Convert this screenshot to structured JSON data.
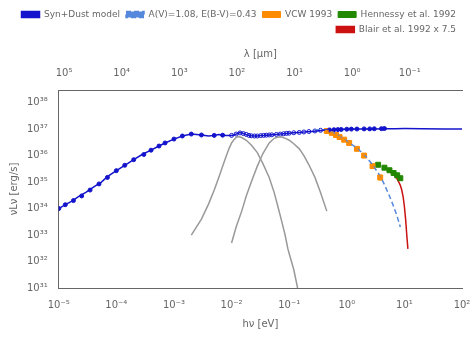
{
  "chart_data": {
    "type": "line",
    "xlabel": "hν [eV]",
    "ylabel": "νLν [erg/s]",
    "x2label": "λ [μm]",
    "log": true,
    "grid": false,
    "legend": "upper right",
    "xlim": [
      1e-05,
      100.0
    ],
    "xticks": [
      {
        "value": 1e-05,
        "label": "10⁻⁵"
      },
      {
        "value": 0.0001,
        "label": "10⁻⁴"
      },
      {
        "value": 0.001,
        "label": "10⁻³"
      },
      {
        "value": 0.01,
        "label": "10⁻²"
      },
      {
        "value": 0.1,
        "label": "10⁻¹"
      },
      {
        "value": 1,
        "label": "10⁰"
      },
      {
        "value": 10,
        "label": "10¹"
      },
      {
        "value": 100,
        "label": "10²"
      }
    ],
    "x2lim": [
      123980,
      0.012398
    ],
    "x2ticks": [
      {
        "value": 100000.0,
        "label": "10⁵"
      },
      {
        "value": 10000.0,
        "label": "10⁴"
      },
      {
        "value": 1000.0,
        "label": "10³"
      },
      {
        "value": 100,
        "label": "10²"
      },
      {
        "value": 10,
        "label": "10¹"
      },
      {
        "value": 1,
        "label": "10⁰"
      },
      {
        "value": 0.1,
        "label": "10⁻¹"
      }
    ],
    "ylim": [
      1e+31,
      3e+38
    ],
    "yticks": [
      {
        "value": 1e+31,
        "label": "10³¹"
      },
      {
        "value": 1e+32,
        "label": "10³²"
      },
      {
        "value": 1e+33,
        "label": "10³³"
      },
      {
        "value": 1e+34,
        "label": "10³⁴"
      },
      {
        "value": 1e+35,
        "label": "10³⁵"
      },
      {
        "value": 1e+36,
        "label": "10³⁶"
      },
      {
        "value": 1e+37,
        "label": "10³⁷"
      },
      {
        "value": 1e+38,
        "label": "10³⁸"
      }
    ],
    "series": [
      {
        "name": "Syn+Dust model",
        "type": "line",
        "color": "#1414cc",
        "x": [
          1e-05,
          1.3e-05,
          1.7e-05,
          2.2e-05,
          3e-05,
          4e-05,
          5.5e-05,
          7e-05,
          0.0001,
          0.00014,
          0.0002,
          0.00028,
          0.0004,
          0.00055,
          0.0007,
          0.001,
          0.0014,
          0.002,
          0.003,
          0.004,
          0.005,
          0.006,
          0.007,
          0.008,
          0.009,
          0.01,
          0.011,
          0.012,
          0.013,
          0.014,
          0.015,
          0.016,
          0.018,
          0.02,
          0.022,
          0.025,
          0.028,
          0.032,
          0.036,
          0.04,
          0.045,
          0.05,
          0.06,
          0.07,
          0.08,
          0.09,
          0.1,
          0.12,
          0.15,
          0.18,
          0.2,
          0.25,
          0.3,
          0.4,
          0.5,
          0.6,
          0.7,
          0.8,
          1.0,
          1.5,
          2.0,
          3.0,
          5.0,
          7.0,
          10.0,
          20.0,
          50.0,
          100.0
        ],
        "values": [
          1e+34,
          1.4e+34,
          1.9e+34,
          2.8e+34,
          4.2e+34,
          6.5e+34,
          1e+35,
          1.6e+35,
          2.7e+35,
          4.3e+35,
          7e+35,
          1.1e+36,
          1.6e+36,
          2.3e+36,
          3e+36,
          4.2e+36,
          5.5e+36,
          6.5e+36,
          6e+36,
          5.5e+36,
          5.8e+36,
          6.2e+36,
          6e+36,
          5.8e+36,
          5.7e+36,
          5.8e+36,
          6e+36,
          6.5e+36,
          7e+36,
          7.5e+36,
          7.2e+36,
          6.8e+36,
          6.2e+36,
          5.8e+36,
          5.6e+36,
          5.5e+36,
          5.5e+36,
          5.7e+36,
          5.8e+36,
          5.9e+36,
          6e+36,
          6.1e+36,
          6.3e+36,
          6.5e+36,
          6.7e+36,
          6.9e+36,
          7e+36,
          7.3e+36,
          7.5e+36,
          7.7e+36,
          7.9e+36,
          8.2e+36,
          8.5e+36,
          9e+36,
          9.4e+36,
          9.6e+36,
          9.7e+36,
          9.8e+36,
          9.9e+36,
          1e+37,
          1.01e+37,
          1.02e+37,
          1.03e+37,
          1.04e+37,
          1.05e+37,
          1.04e+37,
          1.02e+37,
          1e+37
        ]
      },
      {
        "type": "line",
        "color": "#999999",
        "x": [
          0.002,
          0.003,
          0.004,
          0.005,
          0.006,
          0.007,
          0.008,
          0.009,
          0.01,
          0.011,
          0.012,
          0.013,
          0.015,
          0.018,
          0.022,
          0.028,
          0.035,
          0.045,
          0.055,
          0.065,
          0.075,
          0.085,
          0.095,
          0.1,
          0.12,
          0.14
        ],
        "values": [
          1e+33,
          4e+33,
          1.5e+34,
          5e+34,
          1.5e+35,
          4e+35,
          9e+35,
          1.8e+36,
          3e+36,
          4e+36,
          4.8e+36,
          5.2e+36,
          4.8e+36,
          3.8e+36,
          2.5e+36,
          1.3e+36,
          5e+35,
          1.5e+35,
          4e+34,
          1e+34,
          3e+33,
          1e+33,
          3e+32,
          2e+32,
          5e+31,
          1e+31
        ]
      },
      {
        "type": "line",
        "color": "#999999",
        "x": [
          0.01,
          0.012,
          0.015,
          0.018,
          0.022,
          0.028,
          0.035,
          0.045,
          0.055,
          0.065,
          0.075,
          0.09,
          0.1,
          0.12,
          0.15,
          0.18,
          0.22,
          0.28,
          0.35,
          0.45
        ],
        "values": [
          5e+32,
          2e+33,
          8e+33,
          3e+34,
          1e+35,
          4e+35,
          1.2e+36,
          3e+36,
          4.5e+36,
          5e+36,
          5e+36,
          4.3e+36,
          3.8e+36,
          2.8e+36,
          1.8e+36,
          1e+36,
          4.5e+35,
          1.5e+35,
          4e+34,
          8e+33
        ]
      },
      {
        "name": "A(V)=1.08, E(B-V)=0.43",
        "type": "line",
        "color": "#5588dd",
        "line_style": "dashed",
        "x": [
          0.28,
          0.35,
          0.45,
          0.55,
          0.65,
          0.75,
          0.9,
          1.1,
          1.5,
          2.0,
          2.8,
          3.8,
          4.5,
          5.5,
          6.5,
          7.5,
          8.5
        ],
        "values": [
          9.2e+36,
          9.5e+36,
          9.2e+36,
          7.8e+36,
          6.5e+36,
          5.4e+36,
          4.2e+36,
          3.1e+36,
          1.9e+36,
          1.1e+36,
          4.5e+35,
          1.7e+35,
          8e+34,
          3e+34,
          1.2e+34,
          5e+33,
          2e+33
        ]
      },
      {
        "type": "scatter",
        "color": "#1414cc",
        "marker": "circle",
        "x": [
          1e-05,
          1.3e-05,
          1.8e-05,
          2.5e-05,
          3.5e-05,
          5e-05,
          7e-05,
          0.0001,
          0.00014,
          0.0002,
          0.0003,
          0.0004,
          0.00055,
          0.0007,
          0.001,
          0.0014,
          0.002,
          0.003,
          0.005,
          0.007,
          0.5,
          0.6,
          0.7,
          0.8,
          1.0,
          1.2,
          1.5,
          2.0,
          2.5,
          3.0,
          4.0,
          4.5
        ],
        "values": [
          1e+34,
          1.4e+34,
          2e+34,
          3e+34,
          5e+34,
          8.5e+34,
          1.5e+35,
          2.7e+35,
          4.3e+35,
          7e+35,
          1.1e+36,
          1.6e+36,
          2.3e+36,
          3e+36,
          4.2e+36,
          5.5e+36,
          6.5e+36,
          6e+36,
          5.8e+36,
          5.9e+36,
          9.3e+36,
          9.5e+36,
          9.6e+36,
          9.7e+36,
          9.9e+36,
          1e+37,
          1.01e+37,
          1.02e+37,
          1.02e+37,
          1.03e+37,
          1.04e+37,
          1.05e+37
        ],
        "yerr": [
          0,
          0,
          0,
          0,
          0,
          0,
          0,
          0,
          0,
          0,
          0,
          0,
          0,
          0,
          0,
          0,
          3e+35,
          3e+35,
          2e+35,
          2e+35,
          2e+35,
          2e+35,
          2e+35,
          2e+35,
          2e+35,
          2e+35,
          2e+35,
          2e+35,
          3e+35,
          3e+35,
          3e+35,
          3e+35
        ]
      },
      {
        "type": "scatter",
        "color": "#1414cc",
        "marker": "circle_open",
        "x": [
          0.01,
          0.012,
          0.014,
          0.016,
          0.018,
          0.02,
          0.022,
          0.025,
          0.028,
          0.032,
          0.036,
          0.04,
          0.045,
          0.05,
          0.06,
          0.07,
          0.08,
          0.09,
          0.1,
          0.12,
          0.15,
          0.18,
          0.22,
          0.28,
          0.35
        ],
        "values": [
          5.8e+36,
          6.5e+36,
          7.2e+36,
          6.8e+36,
          6.3e+36,
          5.8e+36,
          5.6e+36,
          5.5e+36,
          5.5e+36,
          5.7e+36,
          5.8e+36,
          5.9e+36,
          6e+36,
          6.1e+36,
          6.3e+36,
          6.5e+36,
          6.7e+36,
          6.9e+36,
          7e+36,
          7.3e+36,
          7.5e+36,
          7.8e+36,
          8.1e+36,
          8.5e+36,
          9e+36
        ]
      },
      {
        "name": "VCW 1993",
        "type": "scatter",
        "color": "#ff8c00",
        "marker": "square",
        "x": [
          0.45,
          0.55,
          0.65,
          0.75,
          0.9,
          1.1,
          1.5,
          2.0,
          2.8,
          3.8
        ],
        "values": [
          8.5e+36,
          7.2e+36,
          6e+36,
          5e+36,
          4e+36,
          3e+36,
          1.8e+36,
          1e+36,
          4e+35,
          1.5e+35
        ],
        "yerr": [
          5e+35,
          5e+35,
          4e+35,
          4e+35,
          3e+35,
          3e+35,
          2e+35,
          1.5e+35,
          6e+34,
          3e+34
        ]
      },
      {
        "name": "Hennessy et al. 1992",
        "type": "scatter",
        "color": "#228800",
        "marker": "square",
        "x": [
          3.5,
          4.5,
          5.5,
          6.5,
          7.5,
          8.5
        ],
        "values": [
          4.5e+35,
          3.5e+35,
          2.8e+35,
          2.2e+35,
          1.8e+35,
          1.4e+35
        ],
        "yerr": [
          5e+34,
          4e+34,
          3e+34,
          3e+34,
          2e+34,
          2e+34
        ]
      },
      {
        "name": "Blair et al. 1992 x 7.5",
        "type": "line",
        "color": "#cc1111",
        "x": [
          5.5,
          6.0,
          6.5,
          7.0,
          7.5,
          8.0,
          8.5,
          9.0,
          9.5,
          10.0,
          10.5,
          11.0,
          11.5
        ],
        "values": [
          2.5e+35,
          2.2e+35,
          1.9e+35,
          1.6e+35,
          1.3e+35,
          1e+35,
          7.5e+34,
          5e+34,
          2.8e+34,
          1.2e+34,
          4e+33,
          1e+33,
          3e+32
        ]
      }
    ]
  }
}
